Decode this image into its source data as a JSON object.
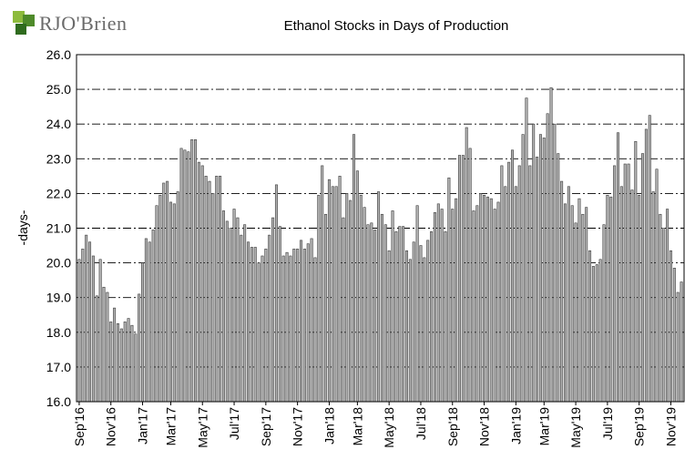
{
  "logo": {
    "text": "RJO'Brien"
  },
  "chart_data": {
    "type": "bar",
    "title": "Ethanol Stocks in Days of Production",
    "xlabel": "",
    "ylabel": "-days-",
    "ylim": [
      16.0,
      26.0
    ],
    "yticks": [
      "16.0",
      "17.0",
      "18.0",
      "19.0",
      "20.0",
      "21.0",
      "22.0",
      "23.0",
      "24.0",
      "25.0",
      "26.0"
    ],
    "grid": "horizontal dash-dot",
    "bar_color": "#b4b4b4",
    "xtick_labels": [
      "Sep'16",
      "Nov'16",
      "Jan'17",
      "Mar'17",
      "May'17",
      "Jul'17",
      "Sep'17",
      "Nov'17",
      "Jan'18",
      "Mar'18",
      "May'18",
      "Jul'18",
      "Sep'18",
      "Nov'18",
      "Jan'19",
      "Mar'19",
      "May'19",
      "Jul'19",
      "Sep'19",
      "Nov'19"
    ],
    "xtick_bar_index": [
      0,
      9,
      18,
      26,
      35,
      44,
      53,
      62,
      71,
      79,
      88,
      97,
      106,
      115,
      124,
      132,
      141,
      150,
      159,
      168
    ],
    "values": [
      20.1,
      20.4,
      20.8,
      20.6,
      20.2,
      19.05,
      20.1,
      19.3,
      19.15,
      18.3,
      18.7,
      18.25,
      18.1,
      18.3,
      18.4,
      18.2,
      17.95,
      19.1,
      20.0,
      20.7,
      20.6,
      20.95,
      21.65,
      21.95,
      22.3,
      22.35,
      21.75,
      21.7,
      22.05,
      23.3,
      23.25,
      23.2,
      23.55,
      23.55,
      22.9,
      22.8,
      22.5,
      22.35,
      22.0,
      22.5,
      22.5,
      21.5,
      21.2,
      21.0,
      21.55,
      21.3,
      20.8,
      21.1,
      20.6,
      20.45,
      20.45,
      20.0,
      20.2,
      20.4,
      20.8,
      21.3,
      22.25,
      21.05,
      20.2,
      20.3,
      20.2,
      20.4,
      20.4,
      20.65,
      20.4,
      20.55,
      20.7,
      20.15,
      21.95,
      22.8,
      21.4,
      22.4,
      22.2,
      22.2,
      22.5,
      21.3,
      22.0,
      21.8,
      23.7,
      22.65,
      21.95,
      21.6,
      21.1,
      21.15,
      20.95,
      22.05,
      21.4,
      21.1,
      20.35,
      21.5,
      20.9,
      21.05,
      21.05,
      20.35,
      20.1,
      20.6,
      21.65,
      20.5,
      20.15,
      20.65,
      20.9,
      21.45,
      21.7,
      21.55,
      20.9,
      22.45,
      21.55,
      21.85,
      23.1,
      23.1,
      23.9,
      23.3,
      21.5,
      21.65,
      22.0,
      21.95,
      21.9,
      21.85,
      21.55,
      21.75,
      22.8,
      22.2,
      22.9,
      23.25,
      22.2,
      22.8,
      23.7,
      24.75,
      22.8,
      24.0,
      23.05,
      23.7,
      23.6,
      24.3,
      25.05,
      24.0,
      23.15,
      22.35,
      21.7,
      22.2,
      21.65,
      21.15,
      21.85,
      21.4,
      21.6,
      20.35,
      19.9,
      19.95,
      20.1,
      21.1,
      21.95,
      21.9,
      22.8,
      23.75,
      22.2,
      22.85,
      22.85,
      22.1,
      23.5,
      21.95,
      23.15,
      23.85,
      24.25,
      22.05,
      22.7,
      21.4,
      21.0,
      21.55,
      20.35,
      19.85,
      19.15,
      19.45
    ]
  }
}
